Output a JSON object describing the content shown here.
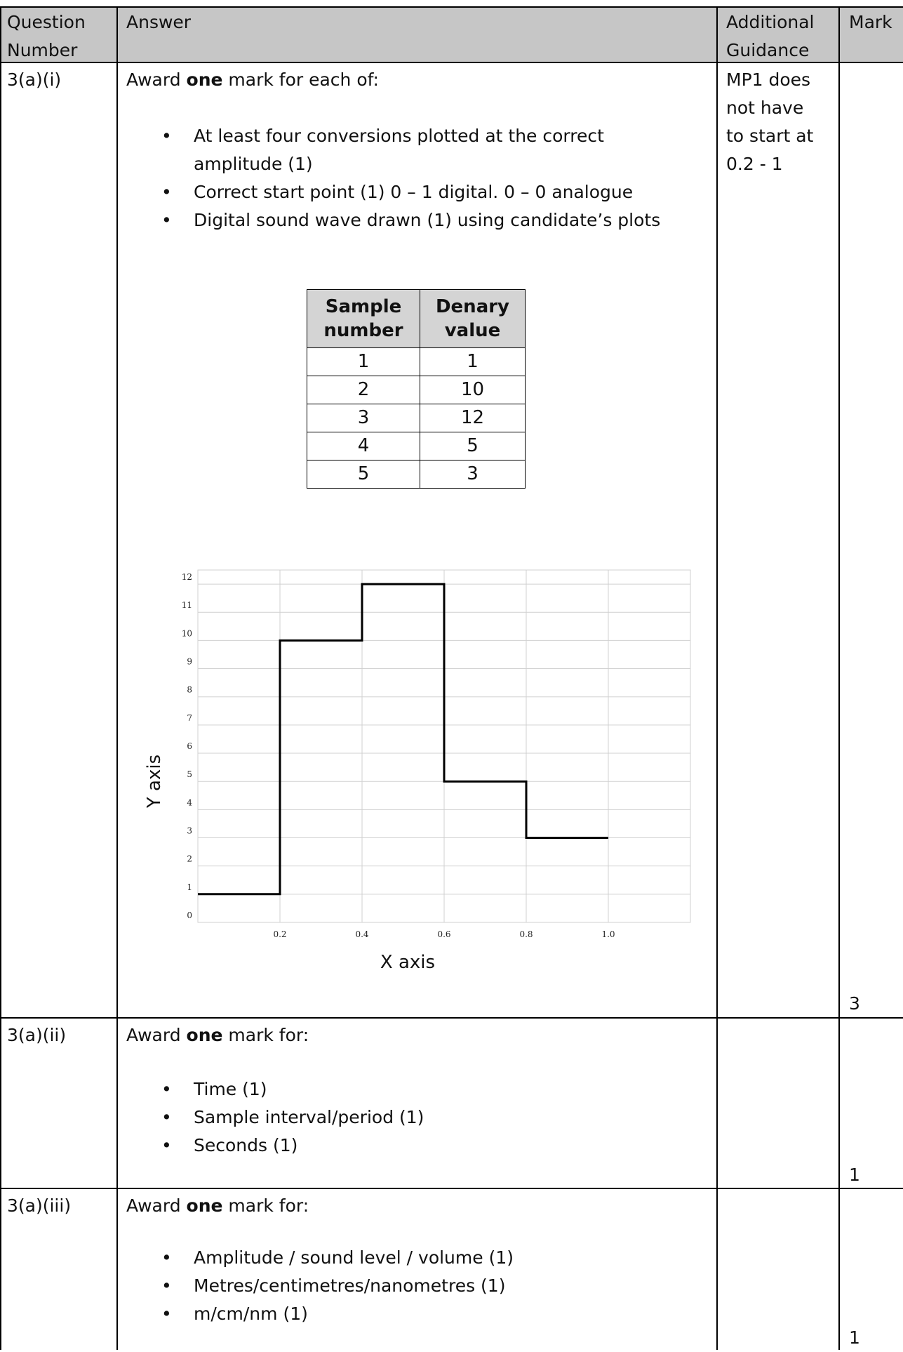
{
  "header": {
    "question_number": [
      "Question",
      "Number"
    ],
    "answer": "Answer",
    "additional_guidance": [
      "Additional",
      "Guidance"
    ],
    "mark": "Mark"
  },
  "rows": [
    {
      "question": "3(a)(i)",
      "intro_pre": "Award ",
      "intro_bold": "one",
      "intro_post": " mark for each of:",
      "bullets": [
        "At least four conversions plotted at the correct",
        "amplitude (1)",
        "Correct start point (1) 0 – 1 digital. 0 – 0 analogue",
        " Digital sound wave drawn  (1) using candidate’s plots"
      ],
      "guidance": [
        "MP1 does",
        "not have",
        "to start at",
        "0.2 - 1"
      ],
      "mark": "3"
    },
    {
      "question": "3(a)(ii)",
      "intro_pre": "Award ",
      "intro_bold": "one",
      "intro_post": " mark for:",
      "bullets": [
        "Time (1)",
        "Sample interval/period (1)",
        "Seconds (1)"
      ],
      "guidance": [],
      "mark": "1"
    },
    {
      "question": "3(a)(iii)",
      "intro_pre": "Award ",
      "intro_bold": "one",
      "intro_post": " mark for:",
      "bullets": [
        "Amplitude / sound level / volume (1)",
        "Metres/centimetres/nanometres (1)",
        "m/cm/nm (1)"
      ],
      "guidance": [],
      "mark": "1"
    }
  ],
  "sample_table": {
    "headers": [
      [
        "Sample",
        "number"
      ],
      [
        "Denary",
        "value"
      ]
    ],
    "rows": [
      [
        "1",
        "1"
      ],
      [
        "2",
        "10"
      ],
      [
        "3",
        "12"
      ],
      [
        "4",
        "5"
      ],
      [
        "5",
        "3"
      ]
    ]
  },
  "chart_data": {
    "type": "line",
    "step": true,
    "xlabel": "X axis",
    "ylabel": "Y axis",
    "xlim": [
      0,
      1.2
    ],
    "ylim": [
      0,
      12.5
    ],
    "x_ticks": [
      "0.2",
      "0.4",
      "0.6",
      "0.8",
      "1.0"
    ],
    "x_tick_values": [
      0.2,
      0.4,
      0.6,
      0.8,
      1.0
    ],
    "y_ticks": [
      0,
      1,
      2,
      3,
      4,
      5,
      6,
      7,
      8,
      9,
      10,
      11,
      12
    ],
    "grid": true,
    "series": [
      {
        "points": [
          [
            0,
            1
          ],
          [
            0.2,
            1
          ],
          [
            0.2,
            10
          ],
          [
            0.4,
            10
          ],
          [
            0.4,
            12
          ],
          [
            0.6,
            12
          ],
          [
            0.6,
            5
          ],
          [
            0.8,
            5
          ],
          [
            0.8,
            3
          ],
          [
            1.0,
            3
          ]
        ]
      }
    ]
  }
}
